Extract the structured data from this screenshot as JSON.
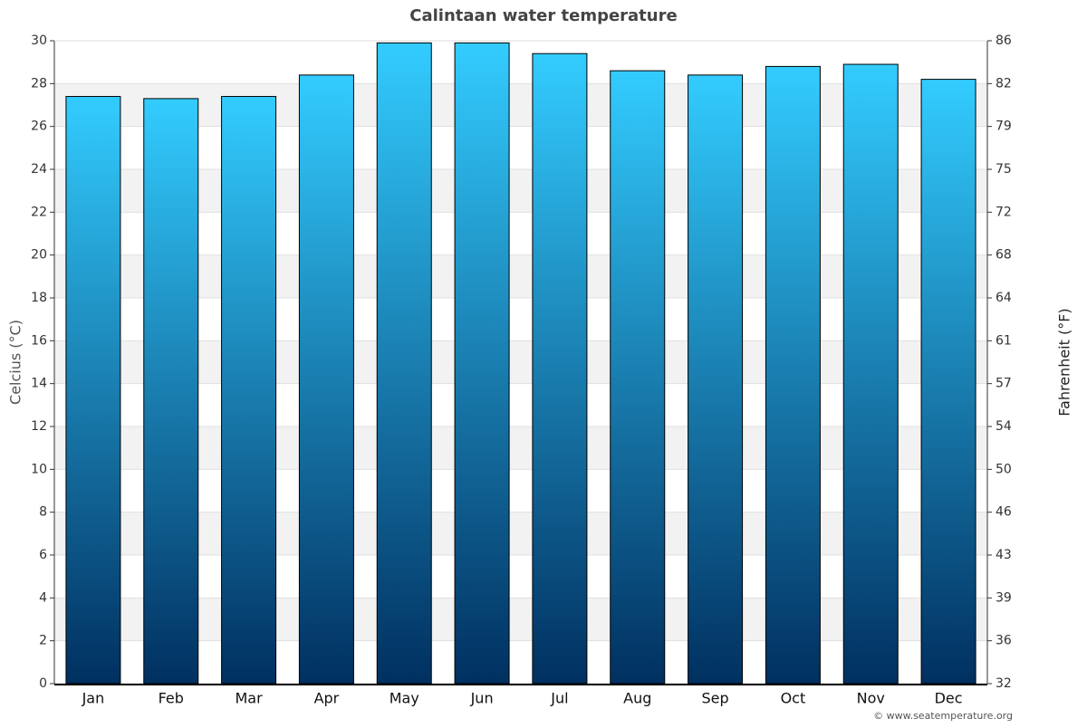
{
  "chart_data": {
    "type": "bar",
    "title": "Calintaan water temperature",
    "y_label": "Celcius (°C)",
    "y2_label": "Fahrenheit (°F)",
    "credit": "© www.seatemperature.org",
    "categories": [
      "Jan",
      "Feb",
      "Mar",
      "Apr",
      "May",
      "Jun",
      "Jul",
      "Aug",
      "Sep",
      "Oct",
      "Nov",
      "Dec"
    ],
    "values": [
      27.4,
      27.3,
      27.4,
      28.4,
      29.9,
      29.9,
      29.4,
      28.6,
      28.4,
      28.8,
      28.9,
      28.2
    ],
    "gradient": [
      "#33ccff",
      "#003060"
    ],
    "ylim": [
      0,
      30
    ],
    "yticks": [
      0,
      2,
      4,
      6,
      8,
      10,
      12,
      14,
      16,
      18,
      20,
      22,
      24,
      26,
      28,
      30
    ],
    "y2lim": [
      32,
      86
    ],
    "y2ticks": [
      32,
      {
        "value": 35.6,
        "label": "36"
      },
      {
        "value": 39.2,
        "label": "39"
      },
      {
        "value": 42.8,
        "label": "43"
      },
      {
        "value": 46.4,
        "label": "46"
      },
      50,
      {
        "value": 53.6,
        "label": "54"
      },
      {
        "value": 57.2,
        "label": "57"
      },
      {
        "value": 60.8,
        "label": "61"
      },
      {
        "value": 64.4,
        "label": "64"
      },
      68,
      {
        "value": 71.6,
        "label": "72"
      },
      {
        "value": 75.2,
        "label": "75"
      },
      {
        "value": 78.8,
        "label": "79"
      },
      {
        "value": 82.4,
        "label": "82"
      },
      86
    ],
    "grid": true
  }
}
